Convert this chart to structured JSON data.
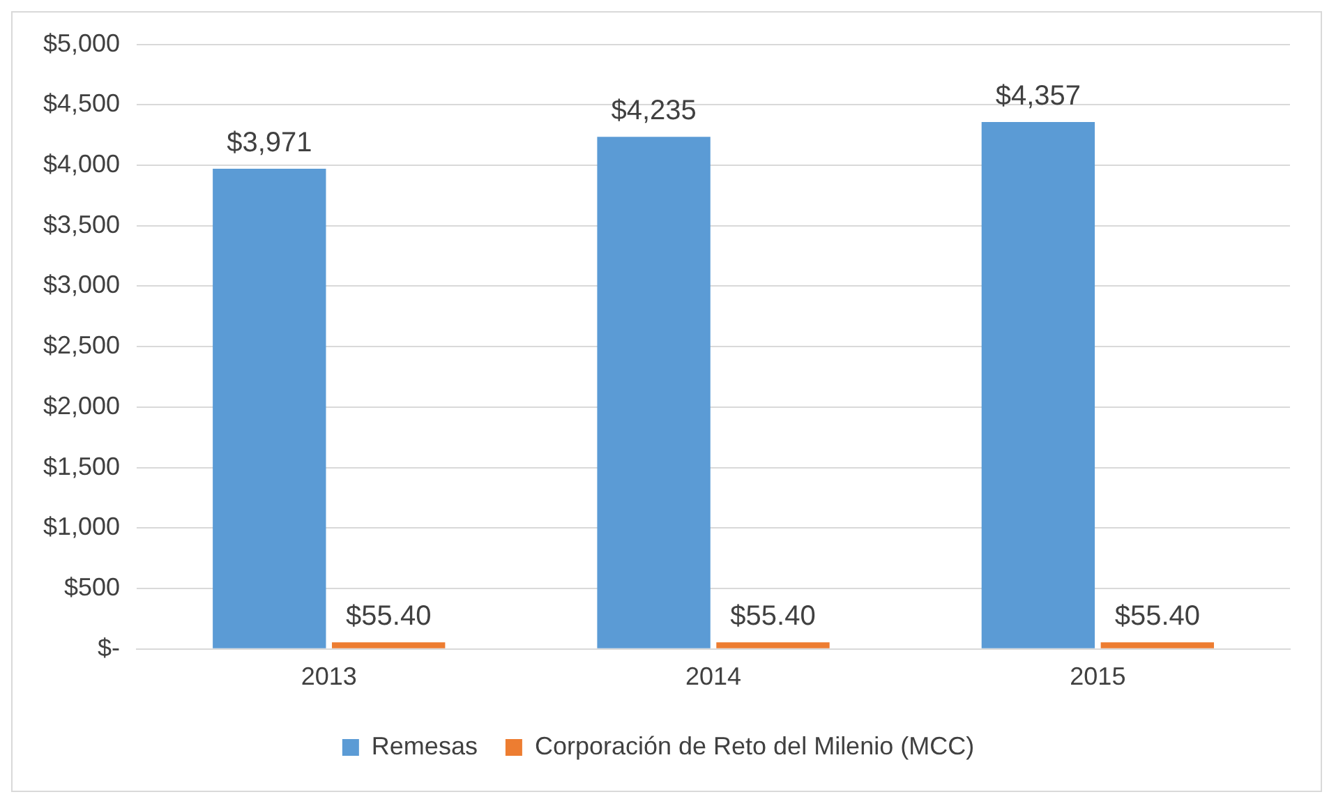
{
  "chart_data": {
    "type": "bar",
    "categories": [
      "2013",
      "2014",
      "2015"
    ],
    "series": [
      {
        "name": "Remesas",
        "color": "#5b9bd5",
        "values": [
          3971,
          4235,
          4357
        ],
        "value_labels": [
          "$3,971",
          "$4,235",
          "$4,357"
        ]
      },
      {
        "name": "Corporación de Reto del Milenio (MCC)",
        "color": "#ed7d31",
        "values": [
          55.4,
          55.4,
          55.4
        ],
        "value_labels": [
          "$55.40",
          "$55.40",
          "$55.40"
        ]
      }
    ],
    "ylim": [
      0,
      5000
    ],
    "yticks": [
      {
        "value": 0,
        "label": "$-"
      },
      {
        "value": 500,
        "label": "$500"
      },
      {
        "value": 1000,
        "label": "$1,000"
      },
      {
        "value": 1500,
        "label": "$1,500"
      },
      {
        "value": 2000,
        "label": "$2,000"
      },
      {
        "value": 2500,
        "label": "$2,500"
      },
      {
        "value": 3000,
        "label": "$3,000"
      },
      {
        "value": 3500,
        "label": "$3,500"
      },
      {
        "value": 4000,
        "label": "$4,000"
      },
      {
        "value": 4500,
        "label": "$4,500"
      },
      {
        "value": 5000,
        "label": "$5,000"
      }
    ],
    "grid": "y",
    "legend": "bottom"
  }
}
